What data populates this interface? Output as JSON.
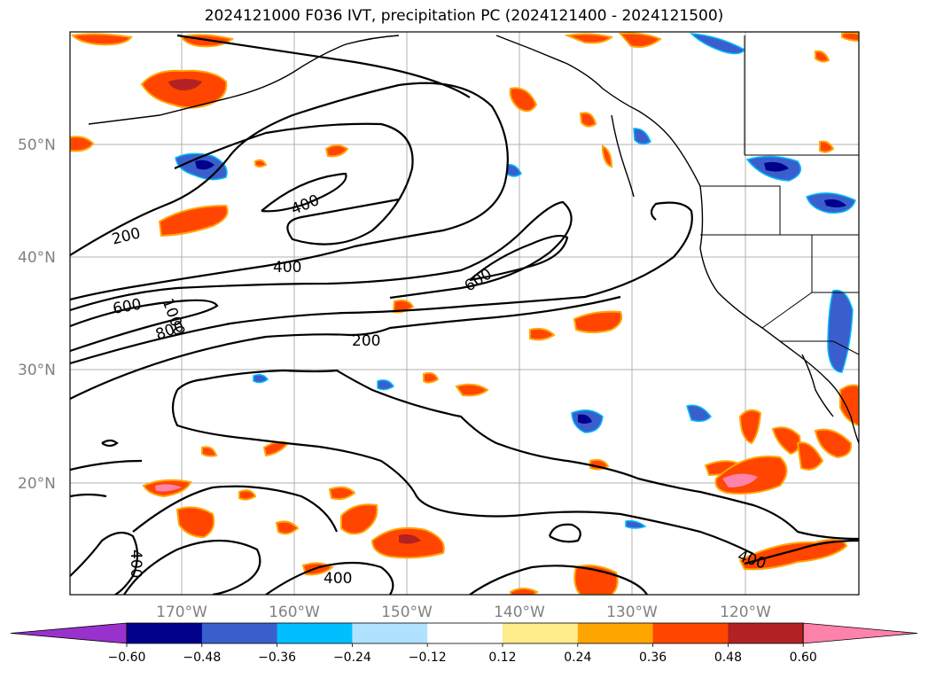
{
  "title": "2024121000 F036 IVT, precipitation PC (2024121400 - 2024121500)",
  "lat_labels": [
    "50°N",
    "40°N",
    "30°N",
    "20°N"
  ],
  "lon_labels": [
    "170°W",
    "160°W",
    "150°W",
    "140°W",
    "130°W",
    "120°W"
  ],
  "contour_labels": [
    "200",
    "400",
    "600",
    "600",
    "400",
    "200",
    "1000",
    "800",
    "400",
    "400",
    "400"
  ],
  "colorbar": {
    "ticks": [
      "−0.60",
      "−0.48",
      "−0.36",
      "−0.24",
      "−0.12",
      "0.12",
      "0.24",
      "0.36",
      "0.48",
      "0.60"
    ],
    "colors": [
      "#9932cc",
      "#00008b",
      "#3a5fcd",
      "#00bfff",
      "#b0e2ff",
      "#ffffff",
      "#ffec8b",
      "#ffa500",
      "#ff4500",
      "#b22222",
      "#ff82ab"
    ]
  }
}
